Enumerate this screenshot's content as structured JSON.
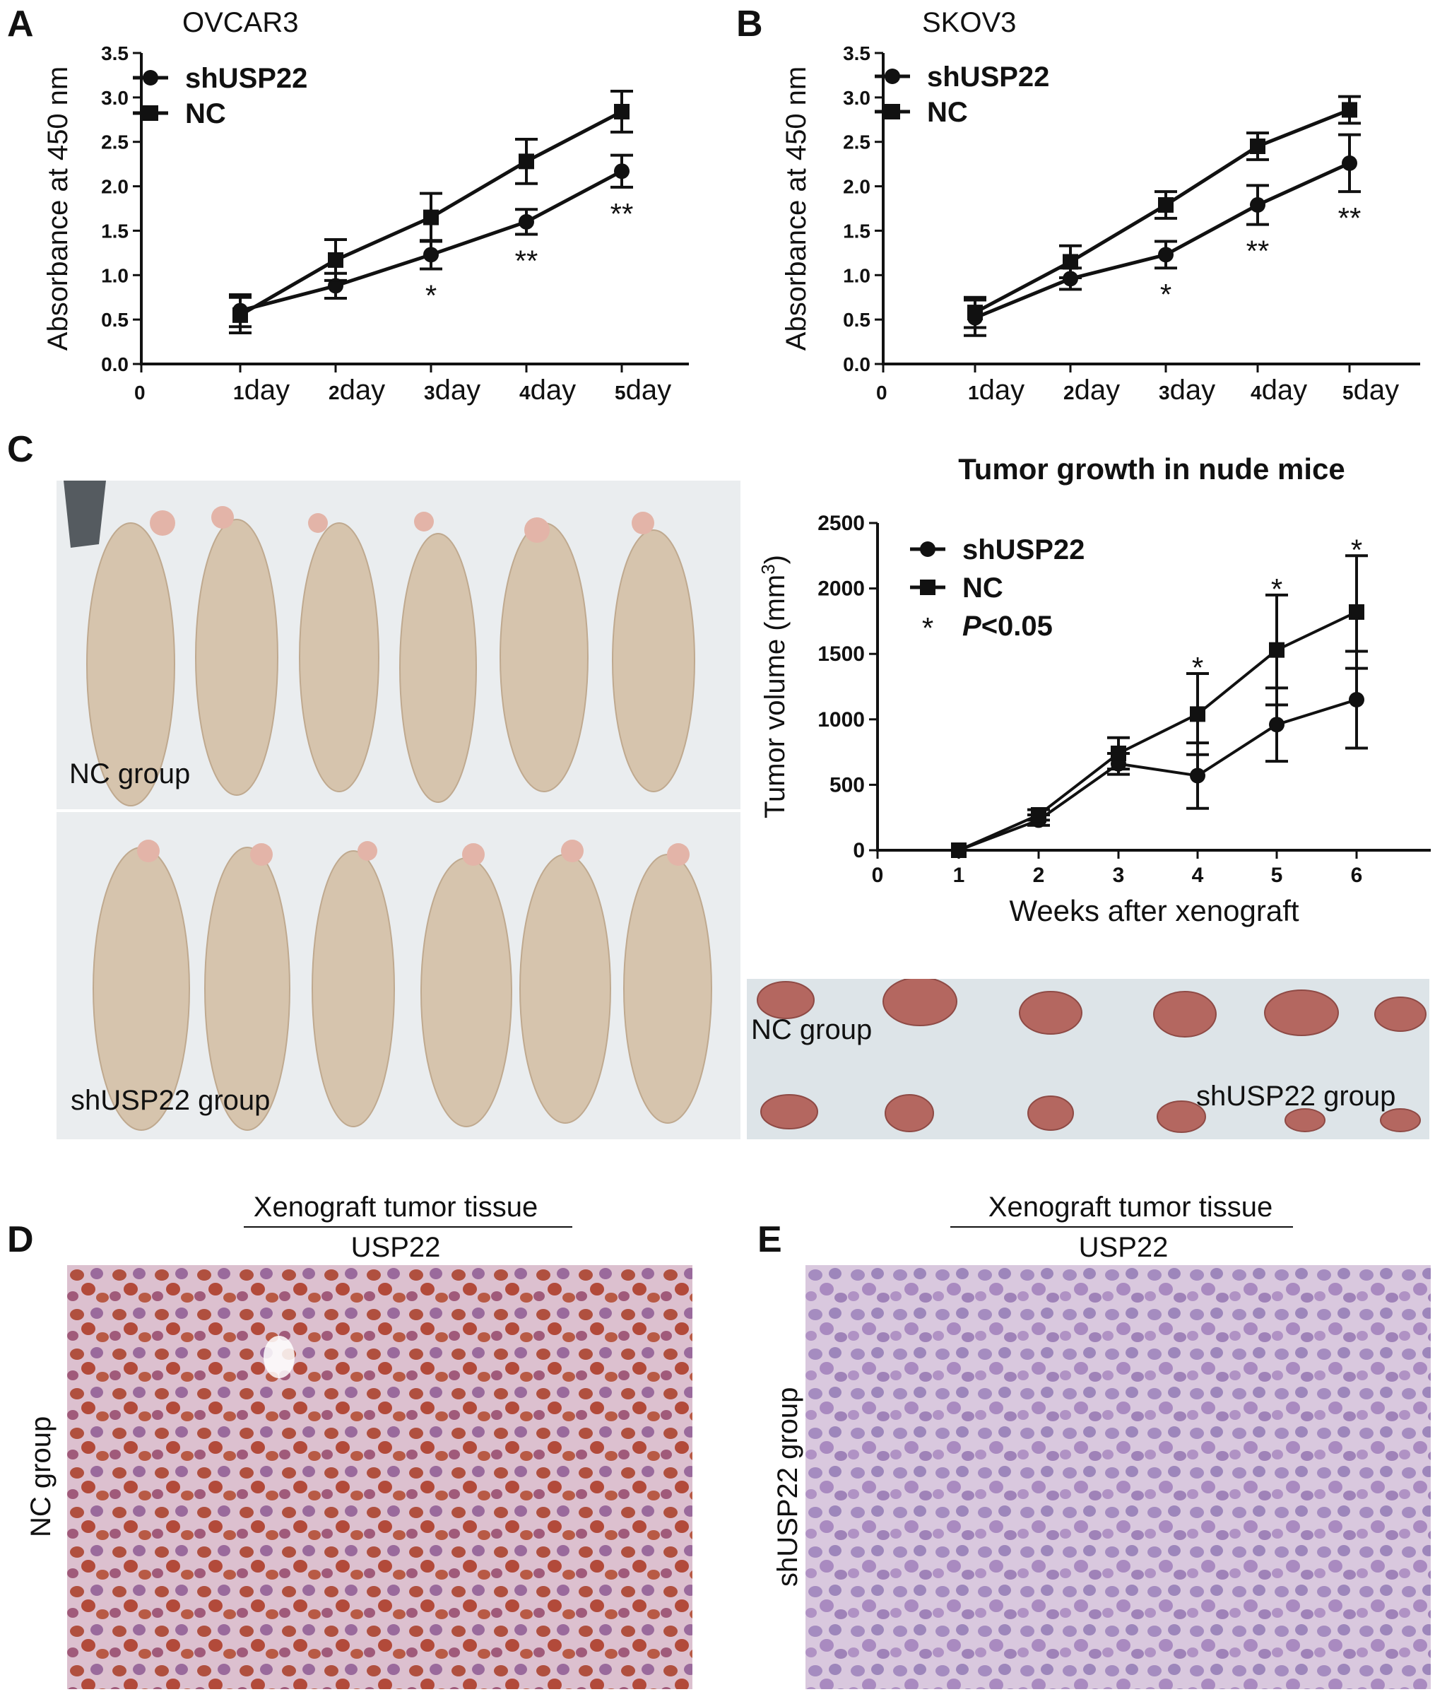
{
  "panels": {
    "A": {
      "letter": "A",
      "cell_line": "OVCAR3"
    },
    "B": {
      "letter": "B",
      "cell_line": "SKOV3"
    },
    "C": {
      "letter": "C",
      "nc_group_label": "NC group",
      "sh_group_label": "shUSP22 group",
      "tumor_nc_label": "NC group",
      "tumor_sh_label": "shUSP22 group"
    },
    "D": {
      "letter": "D",
      "title": "Xenograft tumor tissue",
      "subtitle": "USP22",
      "side_label": "NC group"
    },
    "E": {
      "letter": "E",
      "title": "Xenograft tumor tissue",
      "subtitle": "USP22",
      "side_label": "shUSP22 group"
    }
  },
  "colors": {
    "line": "#1a1a1a",
    "skin": "#d8c6b0",
    "cloth": "#eef0f2",
    "tumor": "#b56a64",
    "he_nc": "#b0503f",
    "he_sh": "#a58cc0"
  },
  "chart_data": [
    {
      "id": "A",
      "type": "line",
      "categories": [
        "0",
        "1day",
        "2 day",
        "3day",
        "4day",
        "5day"
      ],
      "x_tick_labels": [
        {
          "num": "0",
          "word": ""
        },
        {
          "num": "1",
          "word": "day"
        },
        {
          "num": "2",
          "word": "day"
        },
        {
          "num": "3",
          "word": "day"
        },
        {
          "num": "4",
          "word": "day"
        },
        {
          "num": "5",
          "word": "day"
        }
      ],
      "x": [
        0,
        1,
        2,
        3,
        4,
        5
      ],
      "ylabel": "Absorbance at 450 nm",
      "ylim": [
        0,
        3.5
      ],
      "yticks": [
        "0.0",
        "0.5",
        "1.0",
        "1.5",
        "2.0",
        "2.5",
        "3.0",
        "3.5"
      ],
      "series": [
        {
          "name": "shUSP22",
          "marker": "circle",
          "x": [
            1,
            2,
            3,
            4,
            5
          ],
          "values": [
            0.6,
            0.88,
            1.23,
            1.6,
            2.17
          ],
          "err": [
            0.18,
            0.14,
            0.16,
            0.14,
            0.18
          ]
        },
        {
          "name": "NC",
          "marker": "square",
          "x": [
            1,
            2,
            3,
            4,
            5
          ],
          "values": [
            0.55,
            1.17,
            1.65,
            2.28,
            2.84
          ],
          "err": [
            0.2,
            0.23,
            0.27,
            0.25,
            0.23
          ]
        }
      ],
      "annotations": [
        {
          "x": 3,
          "text": "*"
        },
        {
          "x": 4,
          "text": "**"
        },
        {
          "x": 5,
          "text": "**"
        }
      ],
      "legend": "top-left"
    },
    {
      "id": "B",
      "type": "line",
      "categories": [
        "0",
        "1day",
        "2day",
        "3day",
        "4day",
        "5day"
      ],
      "x_tick_labels": [
        {
          "num": "0",
          "word": ""
        },
        {
          "num": "1",
          "word": "day"
        },
        {
          "num": "2",
          "word": "day"
        },
        {
          "num": "3",
          "word": "day"
        },
        {
          "num": "4",
          "word": "day"
        },
        {
          "num": "5",
          "word": "day"
        }
      ],
      "x": [
        0,
        1,
        2,
        3,
        4,
        5
      ],
      "ylabel": "Absorbance at 450 nm",
      "ylim": [
        0,
        3.5
      ],
      "yticks": [
        "0.0",
        "0.5",
        "1.0",
        "1.5",
        "2.0",
        "2.5",
        "3.0",
        "3.5"
      ],
      "series": [
        {
          "name": "shUSP22",
          "marker": "circle",
          "x": [
            1,
            2,
            3,
            4,
            5
          ],
          "values": [
            0.52,
            0.96,
            1.23,
            1.79,
            2.26
          ],
          "err": [
            0.2,
            0.12,
            0.15,
            0.22,
            0.32
          ]
        },
        {
          "name": "NC",
          "marker": "square",
          "x": [
            1,
            2,
            3,
            4,
            5
          ],
          "values": [
            0.58,
            1.15,
            1.79,
            2.45,
            2.86
          ],
          "err": [
            0.17,
            0.18,
            0.15,
            0.15,
            0.15
          ]
        }
      ],
      "annotations": [
        {
          "x": 3,
          "text": "*"
        },
        {
          "x": 4,
          "text": "**"
        },
        {
          "x": 5,
          "text": "**"
        }
      ],
      "legend": "top-left"
    },
    {
      "id": "C",
      "type": "line",
      "title": "Tumor growth in nude mice",
      "categories": [
        "0",
        "1",
        "2",
        "3",
        "4",
        "5",
        "6"
      ],
      "x": [
        0,
        1,
        2,
        3,
        4,
        5,
        6
      ],
      "xlabel": "Weeks after xenograft",
      "ylabel": "Tumor volume (mm",
      "ylabel_sup": "3",
      "ylabel_end": ")",
      "ylim": [
        0,
        2500
      ],
      "yticks": [
        "0",
        "500",
        "1000",
        "1500",
        "2000",
        "2500"
      ],
      "series": [
        {
          "name": "shUSP22",
          "marker": "circle",
          "x": [
            1,
            2,
            3,
            4,
            5,
            6
          ],
          "values": [
            0,
            230,
            660,
            570,
            960,
            1150
          ],
          "err": [
            0,
            40,
            80,
            250,
            280,
            370
          ]
        },
        {
          "name": "NC",
          "marker": "square",
          "x": [
            1,
            2,
            3,
            4,
            5,
            6
          ],
          "values": [
            0,
            270,
            740,
            1040,
            1530,
            1820
          ],
          "err": [
            0,
            40,
            120,
            310,
            420,
            430
          ]
        }
      ],
      "annotations": [
        {
          "x": 4,
          "text": "*"
        },
        {
          "x": 5,
          "text": "*"
        },
        {
          "x": 6,
          "text": "*"
        }
      ],
      "legend_note": {
        "symbol": "*",
        "italic": "P",
        "text": "<0.05"
      },
      "legend": "top-left"
    }
  ]
}
